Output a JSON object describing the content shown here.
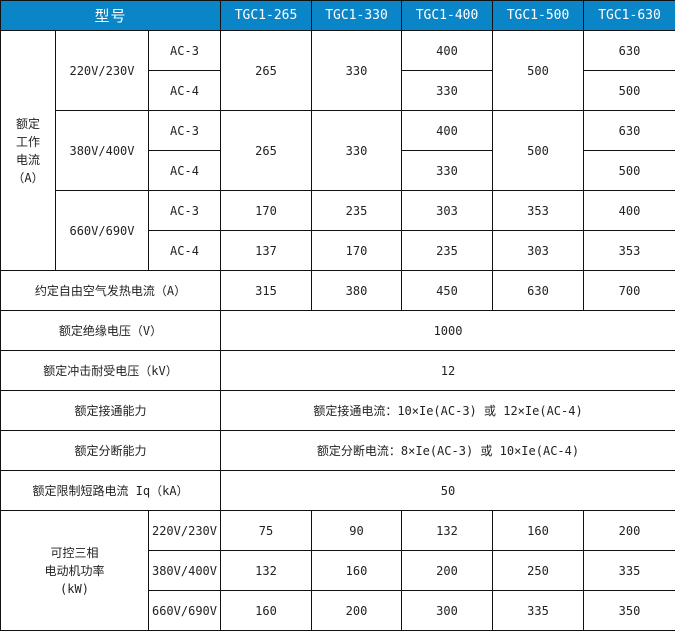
{
  "header": {
    "model": "型号",
    "models": [
      "TGC1-265",
      "TGC1-330",
      "TGC1-400",
      "TGC1-500",
      "TGC1-630"
    ]
  },
  "rated_current": {
    "label": "额定工作电流（A）",
    "label_lines": [
      "额定",
      "工作",
      "电流",
      "（A）"
    ],
    "groups": [
      {
        "voltage": "220V/230V",
        "ac3": "AC-3",
        "ac4": "AC-4",
        "shared": [
          "265",
          "330"
        ],
        "ac3_400": "400",
        "ac4_400": "330",
        "v500": "500",
        "ac3_630": "630",
        "ac4_630": "500"
      },
      {
        "voltage": "380V/400V",
        "ac3": "AC-3",
        "ac4": "AC-4",
        "shared": [
          "265",
          "330"
        ],
        "ac3_400": "400",
        "ac4_400": "330",
        "v500": "500",
        "ac3_630": "630",
        "ac4_630": "500"
      },
      {
        "voltage": "660V/690V",
        "ac3": "AC-3",
        "ac4": "AC-4",
        "ac3_values": [
          "170",
          "235",
          "303",
          "353",
          "400"
        ],
        "ac4_values": [
          "137",
          "170",
          "235",
          "303",
          "353"
        ]
      }
    ]
  },
  "thermal": {
    "label": "约定自由空气发热电流（A）",
    "values": [
      "315",
      "380",
      "450",
      "630",
      "700"
    ]
  },
  "insulation": {
    "label": "额定绝缘电压（V）",
    "value": "1000"
  },
  "impulse": {
    "label": "额定冲击耐受电压（kV）",
    "value": "12"
  },
  "making": {
    "label": "额定接通能力",
    "value": "额定接通电流：10×Ie(AC-3) 或 12×Ie(AC-4)"
  },
  "breaking": {
    "label": "额定分断能力",
    "value": "额定分断电流：8×Ie(AC-3) 或 10×Ie(AC-4)"
  },
  "short_circuit": {
    "label": "额定限制短路电流 Iq（kA）",
    "value": "50"
  },
  "motor_power": {
    "label_lines": [
      "可控三相",
      "电动机功率",
      "(kW)"
    ],
    "rows": [
      {
        "voltage": "220V/230V",
        "values": [
          "75",
          "90",
          "132",
          "160",
          "200"
        ]
      },
      {
        "voltage": "380V/400V",
        "values": [
          "132",
          "160",
          "200",
          "250",
          "335"
        ]
      },
      {
        "voltage": "660V/690V",
        "values": [
          "160",
          "200",
          "300",
          "335",
          "350"
        ]
      }
    ]
  }
}
